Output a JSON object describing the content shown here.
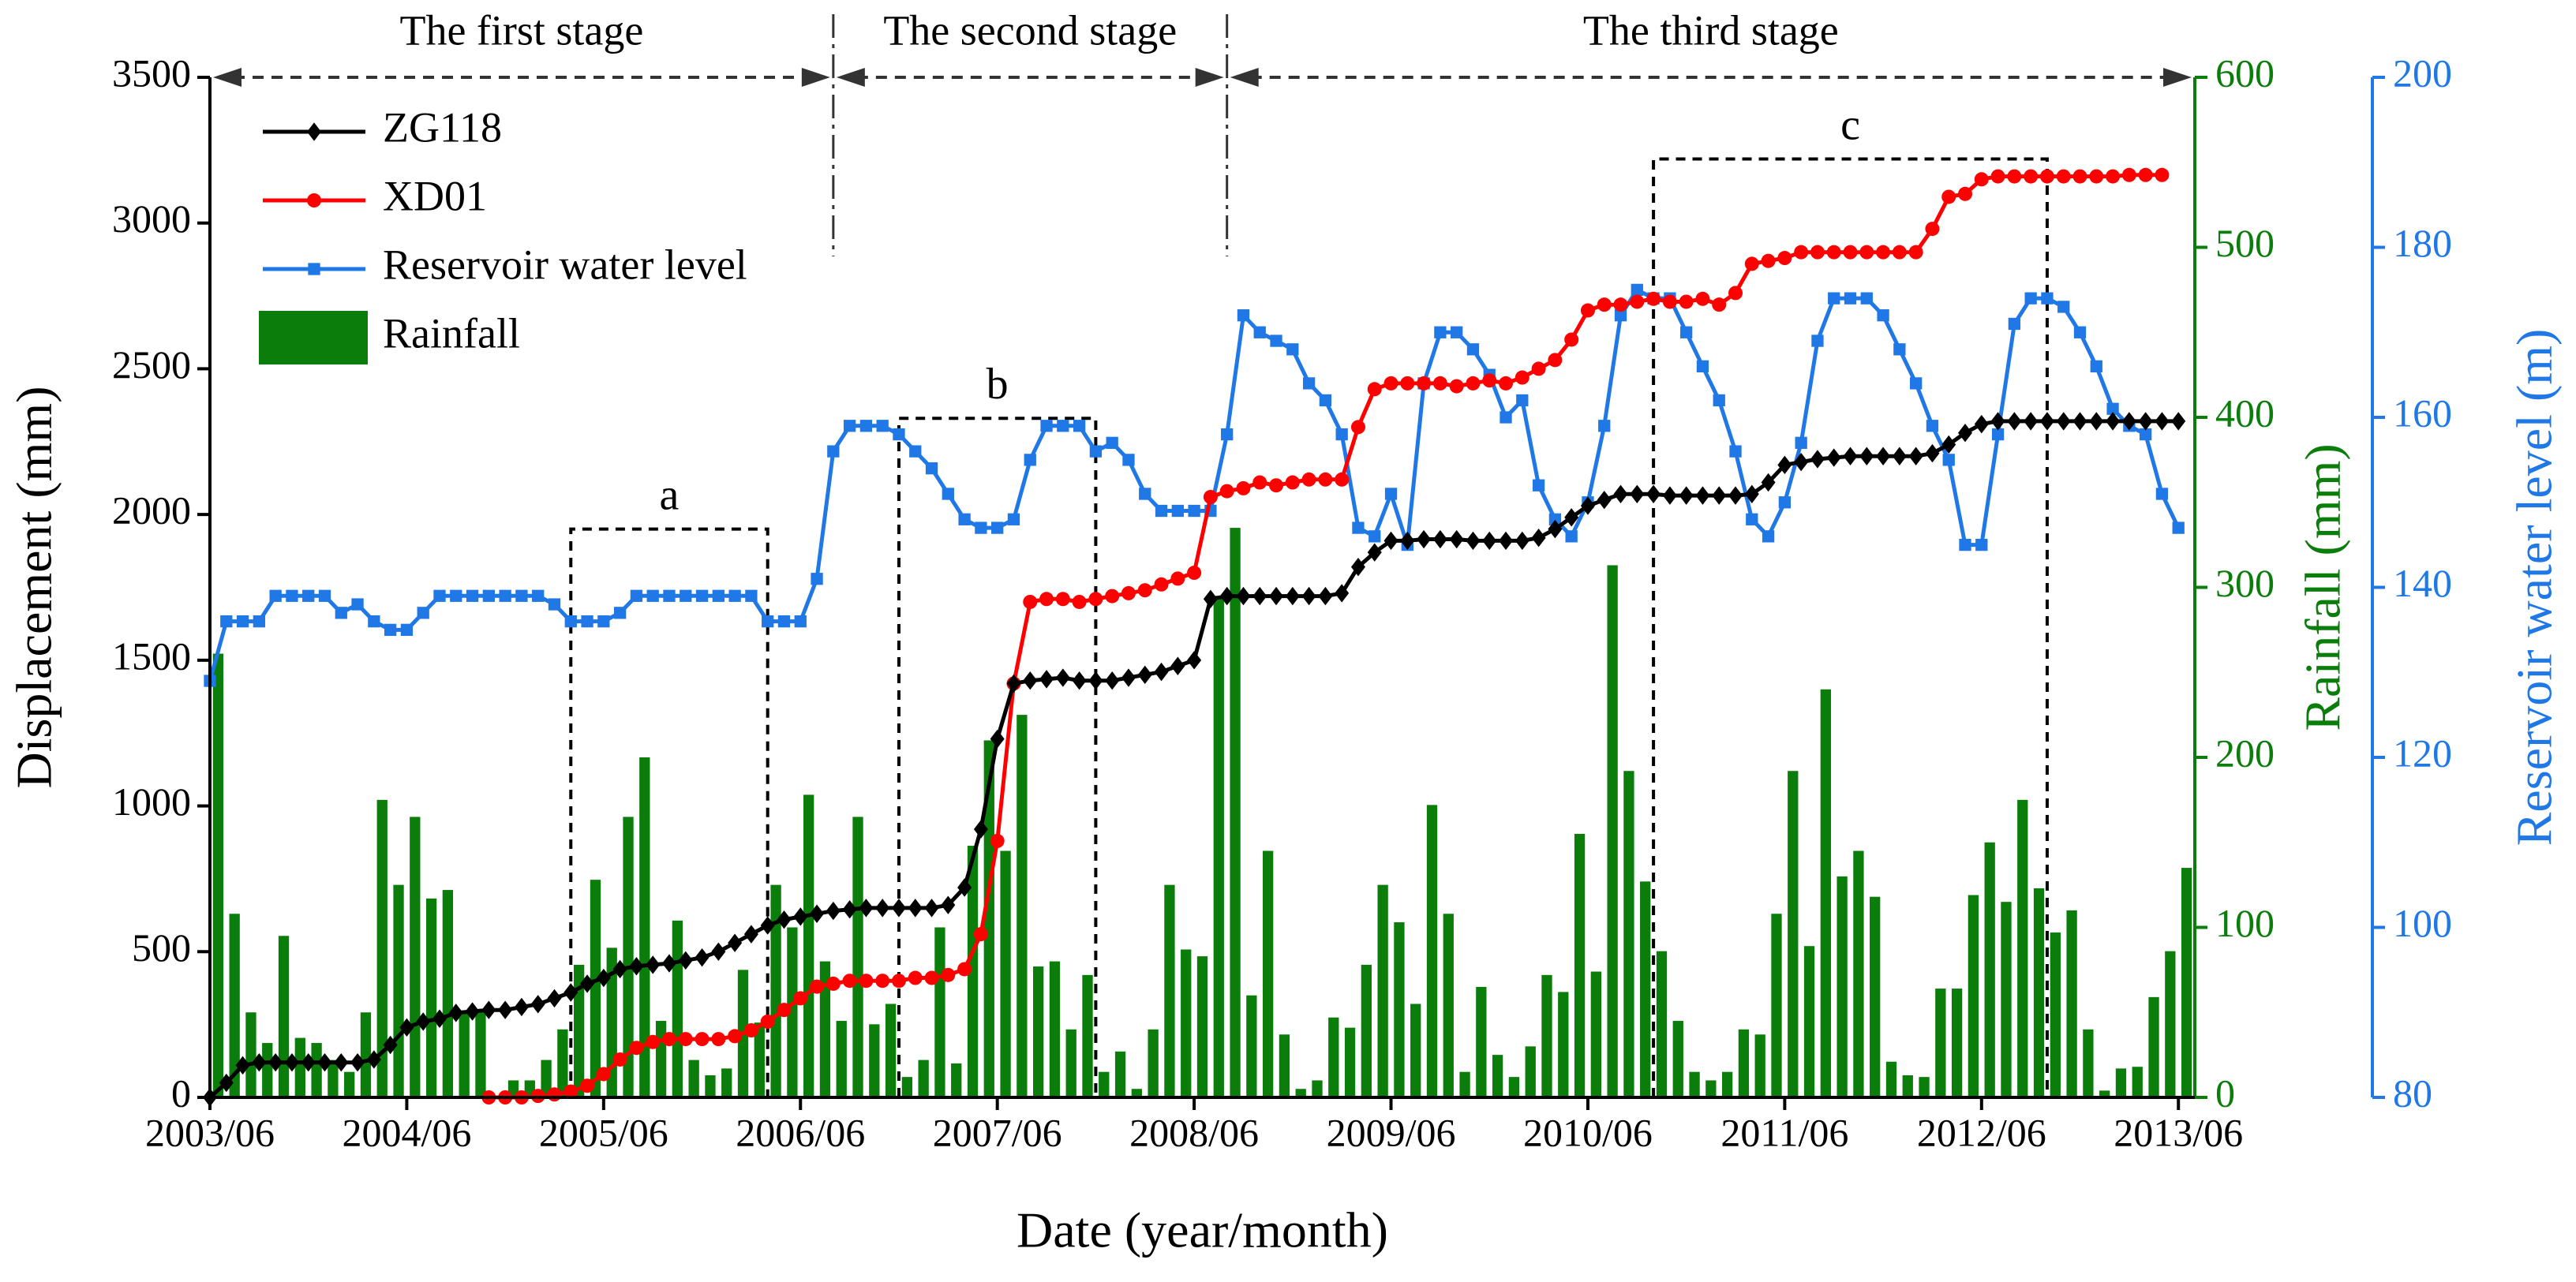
{
  "chart_data": {
    "type": "combo",
    "xlabel": "Date (year/month)",
    "ylabel": "Displacement (mm)",
    "y2label": "Rainfall (mm)",
    "y3label": "Reservoir water level (m)",
    "legend": "upper left",
    "xlim": [
      "2003/06",
      "2013/07"
    ],
    "xticks": [
      "2003/06",
      "2004/06",
      "2005/06",
      "2006/06",
      "2007/06",
      "2008/06",
      "2009/06",
      "2010/06",
      "2011/06",
      "2012/06",
      "2013/06"
    ],
    "ylim": [
      0,
      3500
    ],
    "yticks": [
      0,
      500,
      1000,
      1500,
      2000,
      2500,
      3000,
      3500
    ],
    "y2lim": [
      0,
      600
    ],
    "y2ticks": [
      0,
      100,
      200,
      300,
      400,
      500,
      600
    ],
    "y3lim": [
      80,
      200
    ],
    "y3ticks": [
      80,
      100,
      120,
      140,
      160,
      180,
      200
    ],
    "x": [
      "2003/06",
      "2003/07",
      "2003/08",
      "2003/09",
      "2003/10",
      "2003/11",
      "2003/12",
      "2004/01",
      "2004/02",
      "2004/03",
      "2004/04",
      "2004/05",
      "2004/06",
      "2004/07",
      "2004/08",
      "2004/09",
      "2004/10",
      "2004/11",
      "2004/12",
      "2005/01",
      "2005/02",
      "2005/03",
      "2005/04",
      "2005/05",
      "2005/06",
      "2005/07",
      "2005/08",
      "2005/09",
      "2005/10",
      "2005/11",
      "2005/12",
      "2006/01",
      "2006/02",
      "2006/03",
      "2006/04",
      "2006/05",
      "2006/06",
      "2006/07",
      "2006/08",
      "2006/09",
      "2006/10",
      "2006/11",
      "2006/12",
      "2007/01",
      "2007/02",
      "2007/03",
      "2007/04",
      "2007/05",
      "2007/06",
      "2007/07",
      "2007/08",
      "2007/09",
      "2007/10",
      "2007/11",
      "2007/12",
      "2008/01",
      "2008/02",
      "2008/03",
      "2008/04",
      "2008/05",
      "2008/06",
      "2008/07",
      "2008/08",
      "2008/09",
      "2008/10",
      "2008/11",
      "2008/12",
      "2009/01",
      "2009/02",
      "2009/03",
      "2009/04",
      "2009/05",
      "2009/06",
      "2009/07",
      "2009/08",
      "2009/09",
      "2009/10",
      "2009/11",
      "2009/12",
      "2010/01",
      "2010/02",
      "2010/03",
      "2010/04",
      "2010/05",
      "2010/06",
      "2010/07",
      "2010/08",
      "2010/09",
      "2010/10",
      "2010/11",
      "2010/12",
      "2011/01",
      "2011/02",
      "2011/03",
      "2011/04",
      "2011/05",
      "2011/06",
      "2011/07",
      "2011/08",
      "2011/09",
      "2011/10",
      "2011/11",
      "2011/12",
      "2012/01",
      "2012/02",
      "2012/03",
      "2012/04",
      "2012/05",
      "2012/06",
      "2012/07",
      "2012/08",
      "2012/09",
      "2012/10",
      "2012/11",
      "2012/12",
      "2013/01",
      "2013/02",
      "2013/03",
      "2013/04",
      "2013/05",
      "2013/06"
    ],
    "series": [
      {
        "name": "ZG118",
        "type": "line",
        "axis": "y",
        "marker": "diamond",
        "color": "#000000",
        "values": [
          0,
          50,
          110,
          120,
          120,
          120,
          120,
          120,
          120,
          120,
          130,
          180,
          240,
          260,
          270,
          290,
          295,
          300,
          300,
          310,
          320,
          340,
          360,
          390,
          410,
          440,
          450,
          455,
          460,
          470,
          480,
          500,
          530,
          560,
          590,
          610,
          620,
          630,
          640,
          645,
          650,
          650,
          650,
          650,
          650,
          660,
          720,
          920,
          1230,
          1420,
          1430,
          1435,
          1440,
          1430,
          1430,
          1430,
          1440,
          1450,
          1460,
          1480,
          1500,
          1710,
          1720,
          1720,
          1720,
          1720,
          1720,
          1720,
          1720,
          1730,
          1820,
          1870,
          1910,
          1910,
          1915,
          1915,
          1915,
          1910,
          1910,
          1910,
          1910,
          1920,
          1950,
          1990,
          2030,
          2050,
          2070,
          2070,
          2070,
          2065,
          2065,
          2065,
          2065,
          2065,
          2070,
          2110,
          2170,
          2180,
          2190,
          2195,
          2200,
          2200,
          2200,
          2200,
          2200,
          2210,
          2240,
          2280,
          2310,
          2320,
          2320,
          2320,
          2320,
          2320,
          2320,
          2320,
          2320,
          2320,
          2320,
          2320,
          2320
        ]
      },
      {
        "name": "XD01",
        "type": "line",
        "axis": "y",
        "marker": "circle",
        "color": "#ff0000",
        "values": [
          null,
          null,
          null,
          null,
          null,
          null,
          null,
          null,
          null,
          null,
          null,
          null,
          null,
          null,
          null,
          null,
          null,
          0,
          0,
          0,
          5,
          10,
          20,
          40,
          80,
          130,
          170,
          190,
          200,
          200,
          200,
          200,
          210,
          230,
          260,
          300,
          340,
          380,
          390,
          400,
          400,
          400,
          400,
          410,
          410,
          420,
          440,
          560,
          880,
          1420,
          1700,
          1710,
          1710,
          1700,
          1710,
          1720,
          1730,
          1740,
          1760,
          1780,
          1800,
          2060,
          2080,
          2090,
          2110,
          2100,
          2110,
          2120,
          2120,
          2120,
          2300,
          2430,
          2450,
          2450,
          2450,
          2450,
          2440,
          2450,
          2460,
          2450,
          2470,
          2500,
          2530,
          2600,
          2700,
          2720,
          2720,
          2730,
          2740,
          2730,
          2730,
          2740,
          2720,
          2760,
          2860,
          2870,
          2880,
          2900,
          2900,
          2900,
          2900,
          2900,
          2900,
          2900,
          2900,
          2980,
          3090,
          3100,
          3150,
          3160,
          3160,
          3160,
          3160,
          3160,
          3160,
          3160,
          3160,
          3165,
          3165,
          3165,
          null
        ]
      },
      {
        "name": "Reservoir water level",
        "type": "line",
        "axis": "y3",
        "marker": "square",
        "color": "#1f78e6",
        "values": [
          129,
          136,
          136,
          136,
          139,
          139,
          139,
          139,
          137,
          138,
          136,
          135,
          135,
          137,
          139,
          139,
          139,
          139,
          139,
          139,
          139,
          138,
          136,
          136,
          136,
          137,
          139,
          139,
          139,
          139,
          139,
          139,
          139,
          139,
          136,
          136,
          136,
          141,
          156,
          159,
          159,
          159,
          158,
          156,
          154,
          151,
          148,
          147,
          147,
          148,
          155,
          159,
          159,
          159,
          156,
          157,
          155,
          151,
          149,
          149,
          149,
          149,
          158,
          172,
          170,
          169,
          168,
          164,
          162,
          158,
          147,
          146,
          151,
          145,
          164,
          170,
          170,
          168,
          165,
          160,
          162,
          152,
          148,
          146,
          150,
          159,
          172,
          175,
          174,
          174,
          170,
          166,
          162,
          156,
          148,
          146,
          150,
          157,
          169,
          174,
          174,
          174,
          172,
          168,
          164,
          159,
          155,
          145,
          145,
          158,
          171,
          174,
          174,
          173,
          170,
          166,
          161,
          159,
          158,
          151,
          147
        ]
      },
      {
        "name": "Rainfall",
        "type": "bar",
        "axis": "y2",
        "color": "#0b7d0b",
        "values": [
          261,
          108,
          50,
          32,
          95,
          35,
          32,
          22,
          15,
          50,
          175,
          125,
          165,
          117,
          122,
          50,
          50,
          0,
          10,
          10,
          22,
          40,
          78,
          128,
          88,
          165,
          200,
          45,
          104,
          22,
          13,
          17,
          75,
          44,
          125,
          100,
          178,
          80,
          45,
          165,
          43,
          55,
          12,
          22,
          100,
          20,
          148,
          210,
          145,
          225,
          77,
          80,
          40,
          72,
          15,
          27,
          5,
          40,
          125,
          87,
          83,
          295,
          335,
          60,
          145,
          37,
          5,
          10,
          47,
          41,
          78,
          125,
          103,
          55,
          172,
          108,
          15,
          65,
          25,
          12,
          30,
          72,
          62,
          155,
          74,
          313,
          192,
          127,
          86,
          45,
          15,
          10,
          15,
          40,
          37,
          108,
          192,
          89,
          240,
          130,
          145,
          118,
          21,
          13,
          12,
          64,
          64,
          119,
          150,
          115,
          175,
          123,
          97,
          110,
          40,
          4,
          17,
          18,
          59,
          86,
          135
        ]
      }
    ],
    "stages": [
      {
        "label": "The first stage",
        "start": "2003/06",
        "end": "2006/08"
      },
      {
        "label": "The second stage",
        "start": "2006/08",
        "end": "2008/08"
      },
      {
        "label": "The third stage",
        "start": "2008/08",
        "end": "2013/07"
      }
    ],
    "boxes": [
      {
        "label": "a",
        "start": "2005/04",
        "end": "2006/04",
        "top": 1950
      },
      {
        "label": "b",
        "start": "2006/12",
        "end": "2007/12",
        "top": 2330
      },
      {
        "label": "c",
        "start": "2010/10",
        "end": "2012/10",
        "top": 3220
      }
    ]
  }
}
